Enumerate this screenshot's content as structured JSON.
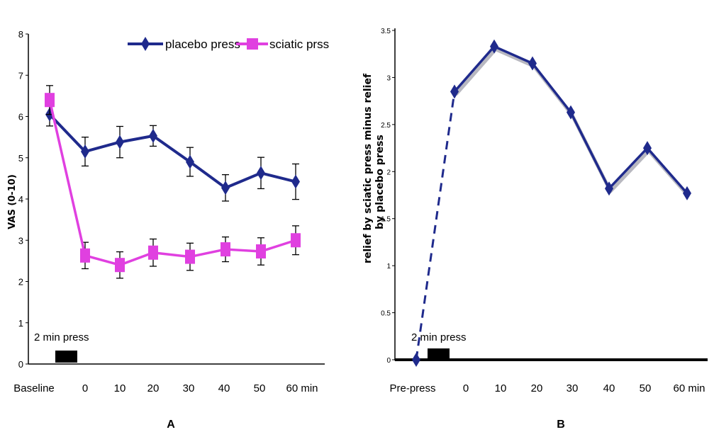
{
  "chart_data": [
    {
      "type": "line",
      "panel_label": "A",
      "ylabel": "VAS (0-10)",
      "ylim": [
        0,
        8
      ],
      "yticks": [
        "0",
        "1",
        "2",
        "3",
        "4",
        "5",
        "6",
        "7",
        "8"
      ],
      "categories": [
        "Baseline",
        "0",
        "10",
        "20",
        "30",
        "40",
        "50",
        "60 min"
      ],
      "annotation": "2 min press",
      "legend_position": "top-right",
      "grid": false,
      "series": [
        {
          "name": "placebo press",
          "color": "#1f2a8c",
          "marker": "diamond",
          "values": [
            6.05,
            5.15,
            5.38,
            5.53,
            4.9,
            4.27,
            4.63,
            4.42
          ],
          "errors": [
            0.28,
            0.35,
            0.38,
            0.25,
            0.35,
            0.32,
            0.38,
            0.43
          ]
        },
        {
          "name": "sciatic prss",
          "color": "#e040e0",
          "marker": "square",
          "values": [
            6.4,
            2.63,
            2.4,
            2.7,
            2.6,
            2.78,
            2.73,
            3.0
          ],
          "errors": [
            0.35,
            0.32,
            0.32,
            0.33,
            0.33,
            0.3,
            0.33,
            0.35
          ]
        }
      ]
    },
    {
      "type": "line",
      "panel_label": "B",
      "ylabel_line1": "relief by sciatic press minus relief",
      "ylabel_line2": "by placebo press",
      "ylim": [
        0,
        3.5
      ],
      "yticks": [
        "0",
        "0.5",
        "1",
        "1.5",
        "2",
        "2.5",
        "3",
        "3.5"
      ],
      "categories": [
        "Pre-press",
        "0",
        "10",
        "20",
        "30",
        "40",
        "50",
        "60 min"
      ],
      "annotation": "2 min press",
      "grid": false,
      "series": [
        {
          "color": "#1f2a8c",
          "marker": "diamond",
          "values": [
            0,
            2.85,
            3.33,
            3.15,
            2.63,
            1.82,
            2.25,
            1.77
          ]
        }
      ]
    }
  ]
}
